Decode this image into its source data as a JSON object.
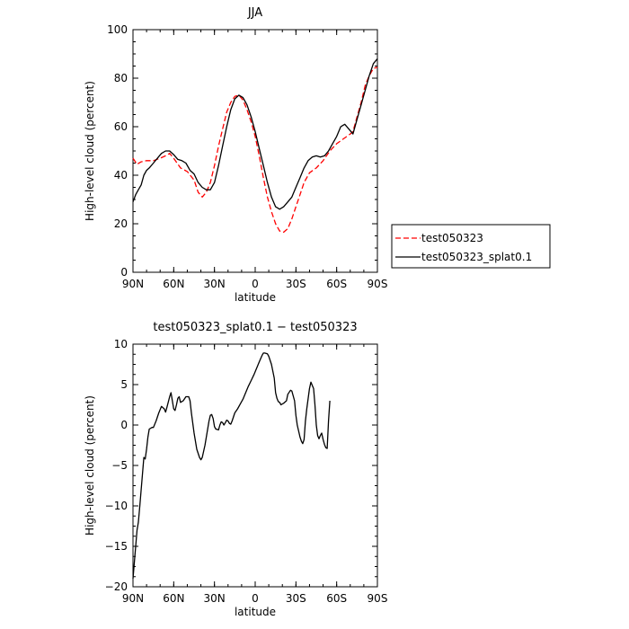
{
  "chart_data": [
    {
      "type": "line",
      "title": "JJA",
      "xlabel": "latitude",
      "ylabel": "High-level cloud (percent)",
      "xlim": [
        90,
        -90
      ],
      "ylim": [
        0,
        100
      ],
      "x_ticks": [
        90,
        60,
        30,
        0,
        -30,
        -60,
        -90
      ],
      "x_tick_labels": [
        "90N",
        "60N",
        "30N",
        "0",
        "30S",
        "60S",
        "90S"
      ],
      "y_ticks": [
        0,
        20,
        40,
        60,
        80,
        100
      ],
      "y_tick_labels": [
        "0",
        "20",
        "40",
        "60",
        "80",
        "100"
      ],
      "legend_position": "right-outside",
      "series": [
        {
          "name": "test050323",
          "color": "#ff0000",
          "dash": "dashed",
          "points": [
            [
              90,
              47
            ],
            [
              87,
              44.5
            ],
            [
              84,
              45.5
            ],
            [
              80,
              46
            ],
            [
              75,
              46
            ],
            [
              70,
              47
            ],
            [
              66,
              48
            ],
            [
              63,
              49
            ],
            [
              60,
              47
            ],
            [
              55,
              43
            ],
            [
              50,
              41.5
            ],
            [
              45,
              38
            ],
            [
              42,
              33
            ],
            [
              39,
              31
            ],
            [
              36,
              33
            ],
            [
              33,
              37
            ],
            [
              30,
              44
            ],
            [
              27,
              52
            ],
            [
              24,
              59
            ],
            [
              21,
              66
            ],
            [
              18,
              70
            ],
            [
              15,
              72.5
            ],
            [
              12,
              73
            ],
            [
              9,
              71
            ],
            [
              6,
              67
            ],
            [
              3,
              62
            ],
            [
              0,
              56
            ],
            [
              -3,
              48
            ],
            [
              -6,
              39
            ],
            [
              -9,
              31
            ],
            [
              -12,
              25
            ],
            [
              -15,
              20
            ],
            [
              -18,
              17
            ],
            [
              -21,
              16.5
            ],
            [
              -24,
              18
            ],
            [
              -27,
              22
            ],
            [
              -30,
              27
            ],
            [
              -33,
              32
            ],
            [
              -36,
              37
            ],
            [
              -40,
              41
            ],
            [
              -45,
              43
            ],
            [
              -50,
              46
            ],
            [
              -55,
              50
            ],
            [
              -60,
              53
            ],
            [
              -65,
              55
            ],
            [
              -70,
              57
            ],
            [
              -72,
              58
            ],
            [
              -75,
              64
            ],
            [
              -78,
              70
            ],
            [
              -81,
              77
            ],
            [
              -84,
              81
            ],
            [
              -87,
              84
            ],
            [
              -90,
              84.5
            ]
          ]
        },
        {
          "name": "test050323_splat0.1",
          "color": "#000000",
          "dash": "solid",
          "points": [
            [
              90,
              29
            ],
            [
              88,
              32
            ],
            [
              86,
              34
            ],
            [
              84,
              36
            ],
            [
              82,
              40
            ],
            [
              80,
              42
            ],
            [
              78,
              43
            ],
            [
              75,
              45
            ],
            [
              72,
              47
            ],
            [
              69,
              49
            ],
            [
              66,
              50
            ],
            [
              63,
              50
            ],
            [
              60,
              48.5
            ],
            [
              57,
              46.5
            ],
            [
              54,
              46
            ],
            [
              51,
              45
            ],
            [
              48,
              42
            ],
            [
              45,
              40.5
            ],
            [
              42,
              37
            ],
            [
              39,
              35
            ],
            [
              36,
              34
            ],
            [
              33,
              34
            ],
            [
              30,
              37
            ],
            [
              27,
              44
            ],
            [
              24,
              52
            ],
            [
              21,
              60
            ],
            [
              18,
              67
            ],
            [
              15,
              71.5
            ],
            [
              12,
              73
            ],
            [
              9,
              72
            ],
            [
              6,
              69
            ],
            [
              3,
              64
            ],
            [
              0,
              58
            ],
            [
              -3,
              51
            ],
            [
              -6,
              44
            ],
            [
              -9,
              37
            ],
            [
              -12,
              31
            ],
            [
              -15,
              27
            ],
            [
              -18,
              26
            ],
            [
              -21,
              27
            ],
            [
              -24,
              29
            ],
            [
              -27,
              31
            ],
            [
              -30,
              35
            ],
            [
              -33,
              39
            ],
            [
              -36,
              43
            ],
            [
              -39,
              46
            ],
            [
              -42,
              47.5
            ],
            [
              -45,
              48
            ],
            [
              -48,
              47.5
            ],
            [
              -51,
              48
            ],
            [
              -54,
              50
            ],
            [
              -57,
              53
            ],
            [
              -60,
              56
            ],
            [
              -63,
              60
            ],
            [
              -66,
              61
            ],
            [
              -69,
              59
            ],
            [
              -72,
              57
            ],
            [
              -75,
              63
            ],
            [
              -78,
              69
            ],
            [
              -81,
              75
            ],
            [
              -84,
              81
            ],
            [
              -87,
              86
            ],
            [
              -90,
              88
            ]
          ]
        }
      ]
    },
    {
      "type": "line",
      "title": "test050323_splat0.1 − test050323",
      "xlabel": "latitude",
      "ylabel": "High-level cloud (percent)",
      "xlim": [
        90,
        -90
      ],
      "ylim": [
        -20,
        10
      ],
      "x_ticks": [
        90,
        60,
        30,
        0,
        -30,
        -60,
        -90
      ],
      "x_tick_labels": [
        "90N",
        "60N",
        "30N",
        "0",
        "30S",
        "60S",
        "90S"
      ],
      "y_ticks": [
        -20,
        -15,
        -10,
        -5,
        0,
        5,
        10
      ],
      "y_tick_labels": [
        "−20",
        "−15",
        "−10",
        "−5",
        "0",
        "5",
        "10"
      ],
      "series": [
        {
          "color": "#000000",
          "dash": "solid",
          "points": [
            [
              90,
              -19
            ],
            [
              89,
              -17
            ],
            [
              88,
              -15
            ],
            [
              87,
              -13
            ],
            [
              86,
              -12
            ],
            [
              85,
              -10
            ],
            [
              84,
              -8
            ],
            [
              83,
              -6
            ],
            [
              82,
              -4
            ],
            [
              81,
              -4.2
            ],
            [
              80,
              -3
            ],
            [
              79,
              -1.5
            ],
            [
              78,
              -0.5
            ],
            [
              76,
              -0.3
            ],
            [
              75,
              -0.3
            ],
            [
              73,
              0.5
            ],
            [
              71,
              1.5
            ],
            [
              69,
              2.3
            ],
            [
              67,
              2
            ],
            [
              66,
              1.6
            ],
            [
              65,
              2.2
            ],
            [
              63,
              3.5
            ],
            [
              62,
              4
            ],
            [
              61,
              3
            ],
            [
              60,
              2
            ],
            [
              59,
              1.8
            ],
            [
              58,
              2.5
            ],
            [
              57,
              3.3
            ],
            [
              56,
              3.5
            ],
            [
              55,
              2.8
            ],
            [
              53,
              3
            ],
            [
              51,
              3.5
            ],
            [
              49,
              3.5
            ],
            [
              48,
              3
            ],
            [
              47,
              1.5
            ],
            [
              45,
              -1
            ],
            [
              43,
              -3
            ],
            [
              41,
              -4
            ],
            [
              40,
              -4.3
            ],
            [
              39,
              -4
            ],
            [
              37,
              -2.5
            ],
            [
              35,
              -0.5
            ],
            [
              34,
              0.5
            ],
            [
              33,
              1.2
            ],
            [
              32,
              1.3
            ],
            [
              31,
              0.8
            ],
            [
              30,
              -0.2
            ],
            [
              29,
              -0.5
            ],
            [
              27,
              -0.6
            ],
            [
              26,
              0
            ],
            [
              25,
              0.4
            ],
            [
              24,
              0.3
            ],
            [
              23,
              0
            ],
            [
              22,
              0.3
            ],
            [
              21,
              0.6
            ],
            [
              20,
              0.5
            ],
            [
              19,
              0.2
            ],
            [
              18,
              0.1
            ],
            [
              17,
              0.5
            ],
            [
              16,
              1
            ],
            [
              15,
              1.5
            ],
            [
              13,
              2
            ],
            [
              11,
              2.6
            ],
            [
              9,
              3.2
            ],
            [
              7,
              4
            ],
            [
              5,
              4.8
            ],
            [
              3,
              5.5
            ],
            [
              1,
              6.2
            ],
            [
              -1,
              7
            ],
            [
              -3,
              7.8
            ],
            [
              -5,
              8.6
            ],
            [
              -6,
              8.9
            ],
            [
              -7,
              8.9
            ],
            [
              -9,
              8.8
            ],
            [
              -10,
              8.5
            ],
            [
              -12,
              7.5
            ],
            [
              -14,
              5.8
            ],
            [
              -15,
              4
            ],
            [
              -16,
              3.3
            ],
            [
              -17,
              2.9
            ],
            [
              -18,
              2.8
            ],
            [
              -19,
              2.5
            ],
            [
              -21,
              2.7
            ],
            [
              -23,
              3
            ],
            [
              -24,
              3.8
            ],
            [
              -26,
              4.3
            ],
            [
              -27,
              4.2
            ],
            [
              -29,
              3
            ],
            [
              -30,
              1.2
            ],
            [
              -31,
              0
            ],
            [
              -33,
              -1.5
            ],
            [
              -34,
              -2
            ],
            [
              -35,
              -2.3
            ],
            [
              -36,
              -1.8
            ],
            [
              -37,
              0.5
            ],
            [
              -38,
              2
            ],
            [
              -40,
              4.5
            ],
            [
              -41,
              5.3
            ],
            [
              -43,
              4.5
            ],
            [
              -44,
              2.5
            ],
            [
              -45,
              0
            ],
            [
              -46,
              -1.3
            ],
            [
              -47,
              -1.7
            ],
            [
              -48,
              -1.3
            ],
            [
              -49,
              -1
            ],
            [
              -50,
              -1.8
            ],
            [
              -51,
              -2.4
            ],
            [
              -52,
              -2.8
            ],
            [
              -53,
              -2.9
            ],
            [
              -54,
              0.5
            ],
            [
              -55,
              3
            ]
          ]
        }
      ]
    }
  ],
  "legend": {
    "entries": [
      "test050323",
      "test050323_splat0.1"
    ]
  }
}
